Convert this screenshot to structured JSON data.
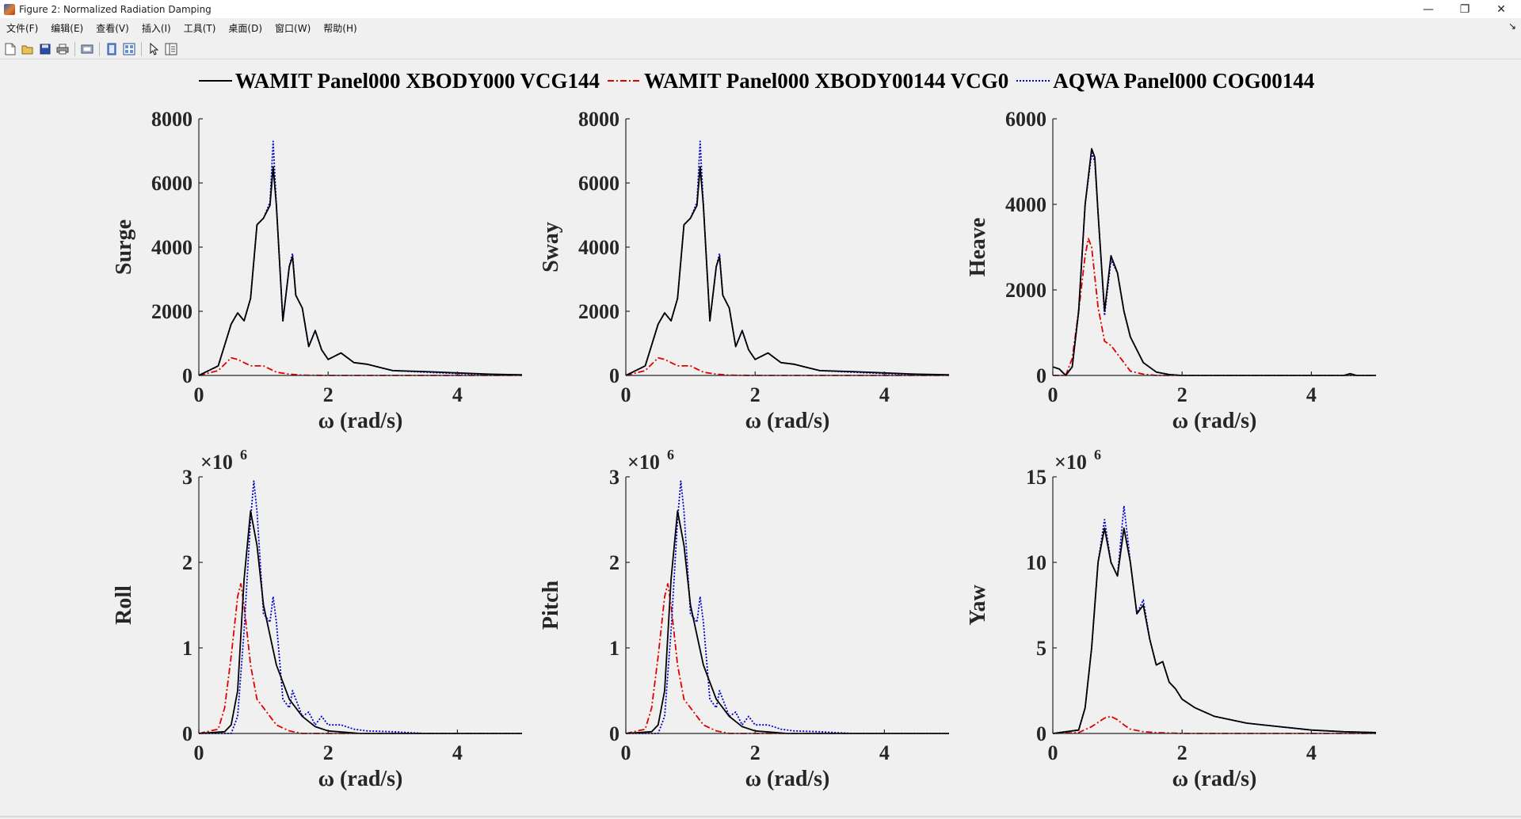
{
  "window": {
    "title": "Figure 2: Normalized Radiation Damping",
    "controls": {
      "minimize": "—",
      "restore": "❐",
      "close": "✕"
    }
  },
  "menu": {
    "items": [
      "文件(F)",
      "编辑(E)",
      "查看(V)",
      "插入(I)",
      "工具(T)",
      "桌面(D)",
      "窗口(W)",
      "帮助(H)"
    ],
    "overflow": "↘"
  },
  "toolbar": {
    "icons": [
      "new-figure-icon",
      "open-file-icon",
      "save-icon",
      "print-icon",
      "print-preview-icon",
      "link-plot-icon",
      "property-editor-icon",
      "pointer-icon",
      "data-panel-icon"
    ]
  },
  "legend": {
    "entries": [
      {
        "label": "WAMIT Panel000 XBODY000 VCG144",
        "color": "#000000",
        "dash": "solid"
      },
      {
        "label": "WAMIT Panel000 XBODY00144 VCG0",
        "color": "#e00000",
        "dash": "dashdot"
      },
      {
        "label": "AQWA Panel000 COG00144",
        "color": "#0000cc",
        "dash": "dotted"
      }
    ]
  },
  "chart_data": [
    {
      "type": "line",
      "ylabel": "Surge",
      "xlabel": "ω (rad/s)",
      "xlim": [
        0,
        5
      ],
      "ylim": [
        0,
        8000
      ],
      "xticks": [
        0,
        2,
        4
      ],
      "yticks": [
        0,
        2000,
        4000,
        6000,
        8000
      ],
      "exponent": "",
      "series": [
        {
          "name": "WAMIT Panel000 XBODY000 VCG144",
          "x": [
            0,
            0.3,
            0.5,
            0.6,
            0.7,
            0.8,
            0.9,
            1.0,
            1.1,
            1.15,
            1.2,
            1.3,
            1.4,
            1.45,
            1.5,
            1.6,
            1.7,
            1.8,
            1.9,
            2.0,
            2.2,
            2.4,
            2.6,
            2.8,
            3.0,
            3.5,
            4.0,
            4.5,
            5.0
          ],
          "y": [
            0,
            300,
            1600,
            1950,
            1700,
            2400,
            4700,
            4900,
            5300,
            6500,
            5300,
            1700,
            3400,
            3700,
            2500,
            2100,
            900,
            1400,
            800,
            500,
            700,
            400,
            350,
            250,
            150,
            120,
            80,
            40,
            20
          ]
        },
        {
          "name": "WAMIT Panel000 XBODY00144 VCG0",
          "x": [
            0,
            0.3,
            0.5,
            0.6,
            0.8,
            1.0,
            1.2,
            1.4,
            1.6,
            2.0,
            3.0,
            5.0
          ],
          "y": [
            0,
            150,
            550,
            500,
            300,
            300,
            100,
            40,
            10,
            0,
            0,
            0
          ]
        },
        {
          "name": "AQWA Panel000 COG00144",
          "x": [
            0,
            0.3,
            0.5,
            0.6,
            0.7,
            0.8,
            0.9,
            1.0,
            1.1,
            1.15,
            1.2,
            1.3,
            1.4,
            1.45,
            1.5,
            1.6,
            1.7,
            1.8,
            1.9,
            2.0,
            2.2,
            2.4,
            2.6,
            2.8,
            3.0,
            3.5,
            4.0,
            4.5,
            5.0
          ],
          "y": [
            0,
            300,
            1600,
            1950,
            1700,
            2400,
            4700,
            4900,
            5400,
            7300,
            5300,
            1700,
            3400,
            3800,
            2500,
            2100,
            900,
            1400,
            800,
            500,
            700,
            400,
            350,
            250,
            150,
            100,
            60,
            30,
            10
          ]
        }
      ]
    },
    {
      "type": "line",
      "ylabel": "Sway",
      "xlabel": "ω (rad/s)",
      "xlim": [
        0,
        5
      ],
      "ylim": [
        0,
        8000
      ],
      "xticks": [
        0,
        2,
        4
      ],
      "yticks": [
        0,
        2000,
        4000,
        6000,
        8000
      ],
      "exponent": "",
      "series": [
        {
          "name": "WAMIT Panel000 XBODY000 VCG144",
          "x": [
            0,
            0.3,
            0.5,
            0.6,
            0.7,
            0.8,
            0.9,
            1.0,
            1.1,
            1.15,
            1.2,
            1.3,
            1.4,
            1.45,
            1.5,
            1.6,
            1.7,
            1.8,
            1.9,
            2.0,
            2.2,
            2.4,
            2.6,
            2.8,
            3.0,
            3.5,
            4.0,
            4.5,
            5.0
          ],
          "y": [
            0,
            300,
            1600,
            1950,
            1700,
            2400,
            4700,
            4900,
            5300,
            6500,
            5300,
            1700,
            3400,
            3700,
            2500,
            2100,
            900,
            1400,
            800,
            500,
            700,
            400,
            350,
            250,
            150,
            120,
            80,
            40,
            20
          ]
        },
        {
          "name": "WAMIT Panel000 XBODY00144 VCG0",
          "x": [
            0,
            0.3,
            0.5,
            0.6,
            0.8,
            1.0,
            1.2,
            1.4,
            1.6,
            2.0,
            3.0,
            5.0
          ],
          "y": [
            0,
            150,
            550,
            500,
            300,
            300,
            100,
            40,
            10,
            0,
            0,
            0
          ]
        },
        {
          "name": "AQWA Panel000 COG00144",
          "x": [
            0,
            0.3,
            0.5,
            0.6,
            0.7,
            0.8,
            0.9,
            1.0,
            1.1,
            1.15,
            1.2,
            1.3,
            1.4,
            1.45,
            1.5,
            1.6,
            1.7,
            1.8,
            1.9,
            2.0,
            2.2,
            2.4,
            2.6,
            2.8,
            3.0,
            3.5,
            4.0,
            4.5,
            5.0
          ],
          "y": [
            0,
            300,
            1600,
            1950,
            1700,
            2400,
            4700,
            4900,
            5400,
            7300,
            5300,
            1700,
            3400,
            3800,
            2500,
            2100,
            900,
            1400,
            800,
            500,
            700,
            400,
            350,
            250,
            150,
            100,
            60,
            30,
            10
          ]
        }
      ]
    },
    {
      "type": "line",
      "ylabel": "Heave",
      "xlabel": "ω (rad/s)",
      "xlim": [
        0,
        5
      ],
      "ylim": [
        0,
        6000
      ],
      "xticks": [
        0,
        2,
        4
      ],
      "yticks": [
        0,
        2000,
        4000,
        6000
      ],
      "exponent": "",
      "series": [
        {
          "name": "WAMIT Panel000 XBODY000 VCG144",
          "x": [
            0,
            0.1,
            0.2,
            0.3,
            0.4,
            0.5,
            0.6,
            0.65,
            0.7,
            0.8,
            0.9,
            1.0,
            1.1,
            1.2,
            1.4,
            1.6,
            1.8,
            2.0,
            3.0,
            4.5,
            4.6,
            4.7,
            5.0
          ],
          "y": [
            200,
            150,
            0,
            200,
            1500,
            4000,
            5300,
            5100,
            3800,
            1500,
            2800,
            2400,
            1500,
            900,
            300,
            80,
            20,
            0,
            0,
            0,
            40,
            0,
            0
          ]
        },
        {
          "name": "WAMIT Panel000 XBODY00144 VCG0",
          "x": [
            0,
            0.2,
            0.3,
            0.4,
            0.5,
            0.55,
            0.6,
            0.7,
            0.8,
            0.9,
            1.0,
            1.1,
            1.2,
            1.4,
            1.6,
            2.0,
            5.0
          ],
          "y": [
            0,
            0,
            400,
            1500,
            2800,
            3200,
            3000,
            1600,
            800,
            700,
            500,
            300,
            100,
            30,
            0,
            0,
            0
          ]
        },
        {
          "name": "AQWA Panel000 COG00144",
          "x": [
            0,
            0.1,
            0.2,
            0.3,
            0.4,
            0.5,
            0.6,
            0.65,
            0.7,
            0.8,
            0.9,
            1.0,
            1.1,
            1.2,
            1.4,
            1.6,
            1.8,
            2.0,
            5.0
          ],
          "y": [
            200,
            150,
            0,
            200,
            1500,
            4000,
            5200,
            5000,
            3800,
            1400,
            2700,
            2400,
            1500,
            900,
            300,
            80,
            20,
            0,
            0
          ]
        }
      ]
    },
    {
      "type": "line",
      "ylabel": "Roll",
      "xlabel": "ω (rad/s)",
      "xlim": [
        0,
        5
      ],
      "ylim": [
        0,
        3
      ],
      "xticks": [
        0,
        2,
        4
      ],
      "yticks": [
        0,
        1,
        2,
        3
      ],
      "exponent": "6",
      "series": [
        {
          "name": "WAMIT Panel000 XBODY000 VCG144",
          "x": [
            0,
            0.4,
            0.5,
            0.6,
            0.7,
            0.8,
            0.9,
            1.0,
            1.2,
            1.4,
            1.6,
            1.8,
            2.0,
            2.5,
            5.0
          ],
          "y": [
            0,
            0.02,
            0.1,
            0.5,
            1.8,
            2.6,
            2.2,
            1.5,
            0.8,
            0.4,
            0.2,
            0.08,
            0.03,
            0,
            0
          ]
        },
        {
          "name": "WAMIT Panel000 XBODY00144 VCG0",
          "x": [
            0,
            0.3,
            0.4,
            0.5,
            0.6,
            0.65,
            0.7,
            0.8,
            0.9,
            1.0,
            1.1,
            1.2,
            1.4,
            1.6,
            2.0,
            5.0
          ],
          "y": [
            0,
            0.05,
            0.3,
            0.9,
            1.6,
            1.75,
            1.5,
            0.8,
            0.4,
            0.3,
            0.2,
            0.1,
            0.03,
            0,
            0,
            0
          ]
        },
        {
          "name": "AQWA Panel000 COG00144",
          "x": [
            0,
            0.5,
            0.6,
            0.7,
            0.8,
            0.85,
            0.9,
            1.0,
            1.1,
            1.15,
            1.2,
            1.3,
            1.4,
            1.45,
            1.5,
            1.6,
            1.7,
            1.8,
            1.9,
            2.0,
            2.2,
            2.4,
            2.6,
            3.0,
            3.5,
            5.0
          ],
          "y": [
            0,
            0,
            0.2,
            1.2,
            2.5,
            2.95,
            2.6,
            1.4,
            1.3,
            1.6,
            1.3,
            0.4,
            0.3,
            0.5,
            0.4,
            0.2,
            0.25,
            0.1,
            0.2,
            0.1,
            0.1,
            0.05,
            0.03,
            0.02,
            0,
            0
          ]
        }
      ]
    },
    {
      "type": "line",
      "ylabel": "Pitch",
      "xlabel": "ω (rad/s)",
      "xlim": [
        0,
        5
      ],
      "ylim": [
        0,
        3
      ],
      "xticks": [
        0,
        2,
        4
      ],
      "yticks": [
        0,
        1,
        2,
        3
      ],
      "exponent": "6",
      "series": [
        {
          "name": "WAMIT Panel000 XBODY000 VCG144",
          "x": [
            0,
            0.4,
            0.5,
            0.6,
            0.7,
            0.8,
            0.9,
            1.0,
            1.2,
            1.4,
            1.6,
            1.8,
            2.0,
            2.5,
            5.0
          ],
          "y": [
            0,
            0.02,
            0.1,
            0.5,
            1.8,
            2.6,
            2.2,
            1.5,
            0.8,
            0.4,
            0.2,
            0.08,
            0.03,
            0,
            0
          ]
        },
        {
          "name": "WAMIT Panel000 XBODY00144 VCG0",
          "x": [
            0,
            0.3,
            0.4,
            0.5,
            0.6,
            0.65,
            0.7,
            0.8,
            0.9,
            1.0,
            1.1,
            1.2,
            1.4,
            1.6,
            2.0,
            5.0
          ],
          "y": [
            0,
            0.05,
            0.3,
            0.9,
            1.6,
            1.75,
            1.5,
            0.8,
            0.4,
            0.3,
            0.2,
            0.1,
            0.03,
            0,
            0,
            0
          ]
        },
        {
          "name": "AQWA Panel000 COG00144",
          "x": [
            0,
            0.5,
            0.6,
            0.7,
            0.8,
            0.85,
            0.9,
            1.0,
            1.1,
            1.15,
            1.2,
            1.3,
            1.4,
            1.45,
            1.5,
            1.6,
            1.7,
            1.8,
            1.9,
            2.0,
            2.2,
            2.4,
            2.6,
            3.0,
            3.5,
            5.0
          ],
          "y": [
            0,
            0,
            0.2,
            1.2,
            2.5,
            2.95,
            2.6,
            1.4,
            1.3,
            1.6,
            1.3,
            0.4,
            0.3,
            0.5,
            0.4,
            0.2,
            0.25,
            0.1,
            0.2,
            0.1,
            0.1,
            0.05,
            0.03,
            0.02,
            0,
            0
          ]
        }
      ]
    },
    {
      "type": "line",
      "ylabel": "Yaw",
      "xlabel": "ω (rad/s)",
      "xlim": [
        0,
        5
      ],
      "ylim": [
        0,
        15
      ],
      "xticks": [
        0,
        2,
        4
      ],
      "yticks": [
        0,
        5,
        10,
        15
      ],
      "exponent": "6",
      "series": [
        {
          "name": "WAMIT Panel000 XBODY000 VCG144",
          "x": [
            0,
            0.4,
            0.5,
            0.6,
            0.7,
            0.8,
            0.9,
            1.0,
            1.1,
            1.2,
            1.3,
            1.4,
            1.5,
            1.6,
            1.7,
            1.8,
            1.9,
            2.0,
            2.2,
            2.5,
            3.0,
            3.5,
            4.0,
            4.5,
            5.0
          ],
          "y": [
            0,
            0.2,
            1.5,
            5,
            10,
            12,
            10,
            9.2,
            12,
            10,
            7,
            7.5,
            5.5,
            4,
            4.2,
            3,
            2.6,
            2,
            1.5,
            1,
            0.6,
            0.4,
            0.2,
            0.1,
            0.05
          ]
        },
        {
          "name": "WAMIT Panel000 XBODY00144 VCG0",
          "x": [
            0,
            0.4,
            0.6,
            0.8,
            0.9,
            1.0,
            1.1,
            1.2,
            1.4,
            1.6,
            2.0,
            3.0,
            5.0
          ],
          "y": [
            0,
            0.05,
            0.4,
            0.9,
            1.0,
            0.8,
            0.5,
            0.25,
            0.1,
            0.05,
            0,
            0,
            0
          ]
        },
        {
          "name": "AQWA Panel000 COG00144",
          "x": [
            0,
            0.4,
            0.5,
            0.6,
            0.7,
            0.8,
            0.9,
            1.0,
            1.1,
            1.2,
            1.3,
            1.4,
            1.5,
            1.6,
            1.7,
            1.8,
            1.9,
            2.0,
            2.2,
            2.5,
            3.0,
            3.5,
            4.0,
            4.5,
            5.0
          ],
          "y": [
            0,
            0.2,
            1.5,
            5,
            10,
            12.5,
            10,
            9.2,
            13.3,
            10,
            7,
            7.8,
            5.5,
            4,
            4.2,
            3,
            2.6,
            2,
            1.5,
            1,
            0.6,
            0.4,
            0.2,
            0.1,
            0.05
          ]
        }
      ]
    }
  ]
}
